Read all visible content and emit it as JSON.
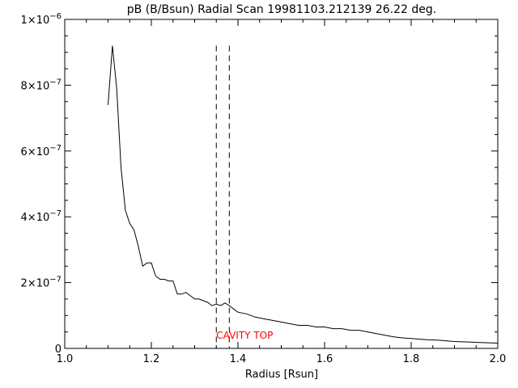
{
  "chart_data": {
    "type": "line",
    "title": "pB (B/Bsun) Radial Scan 19981103.212139 26.22 deg.",
    "xlabel": "Radius [Rsun]",
    "ylabel": "",
    "xlim": [
      1.0,
      2.0
    ],
    "ylim": [
      0,
      1e-06
    ],
    "grid": false,
    "x_ticks": [
      {
        "value": 1.0,
        "label": "1.0"
      },
      {
        "value": 1.2,
        "label": "1.2"
      },
      {
        "value": 1.4,
        "label": "1.4"
      },
      {
        "value": 1.6,
        "label": "1.6"
      },
      {
        "value": 1.8,
        "label": "1.8"
      },
      {
        "value": 2.0,
        "label": "2.0"
      }
    ],
    "y_ticks": [
      {
        "value": 0,
        "mant": "0",
        "exp": ""
      },
      {
        "value": 2e-07,
        "mant": "2×10",
        "exp": "−7"
      },
      {
        "value": 4e-07,
        "mant": "4×10",
        "exp": "−7"
      },
      {
        "value": 6e-07,
        "mant": "6×10",
        "exp": "−7"
      },
      {
        "value": 8e-07,
        "mant": "8×10",
        "exp": "−7"
      },
      {
        "value": 1e-06,
        "mant": "1×10",
        "exp": "−6"
      }
    ],
    "series": [
      {
        "color": "#000000",
        "x": [
          1.1,
          1.11,
          1.12,
          1.13,
          1.14,
          1.15,
          1.16,
          1.17,
          1.18,
          1.19,
          1.2,
          1.21,
          1.22,
          1.23,
          1.24,
          1.25,
          1.26,
          1.27,
          1.28,
          1.29,
          1.3,
          1.31,
          1.32,
          1.33,
          1.34,
          1.35,
          1.36,
          1.37,
          1.38,
          1.39,
          1.4,
          1.42,
          1.44,
          1.46,
          1.48,
          1.5,
          1.52,
          1.54,
          1.56,
          1.58,
          1.6,
          1.62,
          1.64,
          1.66,
          1.68,
          1.7,
          1.72,
          1.74,
          1.76,
          1.78,
          1.8,
          1.82,
          1.84,
          1.86,
          1.88,
          1.9,
          1.92,
          1.94,
          1.96,
          1.98,
          2.0
        ],
        "y": [
          7.4e-07,
          9.2e-07,
          7.9e-07,
          5.5e-07,
          4.2e-07,
          3.8e-07,
          3.6e-07,
          3.1e-07,
          2.5e-07,
          2.6e-07,
          2.6e-07,
          2.2e-07,
          2.1e-07,
          2.1e-07,
          2.05e-07,
          2.05e-07,
          1.65e-07,
          1.65e-07,
          1.7e-07,
          1.6e-07,
          1.5e-07,
          1.5e-07,
          1.45e-07,
          1.4e-07,
          1.3e-07,
          1.35e-07,
          1.3e-07,
          1.38e-07,
          1.3e-07,
          1.2e-07,
          1.1e-07,
          1.05e-07,
          9.5e-08,
          9e-08,
          8.5e-08,
          8e-08,
          7.5e-08,
          7e-08,
          7e-08,
          6.5e-08,
          6.5e-08,
          6e-08,
          6e-08,
          5.5e-08,
          5.5e-08,
          5e-08,
          4.5e-08,
          4e-08,
          3.5e-08,
          3.2e-08,
          3e-08,
          2.8e-08,
          2.6e-08,
          2.5e-08,
          2.3e-08,
          2.1e-08,
          2e-08,
          1.9e-08,
          1.8e-08,
          1.7e-08,
          1.6e-08
        ]
      }
    ],
    "reference_lines": [
      {
        "x": 1.35,
        "y_top": 9.2e-07,
        "style": "dashed",
        "color": "#000000"
      },
      {
        "x": 1.38,
        "y_top": 9.2e-07,
        "style": "dashed",
        "color": "#000000"
      }
    ],
    "annotations": [
      {
        "text": "CAVITY TOP",
        "x": 1.35,
        "y": 2e-08,
        "color": "#ff0000"
      }
    ]
  }
}
